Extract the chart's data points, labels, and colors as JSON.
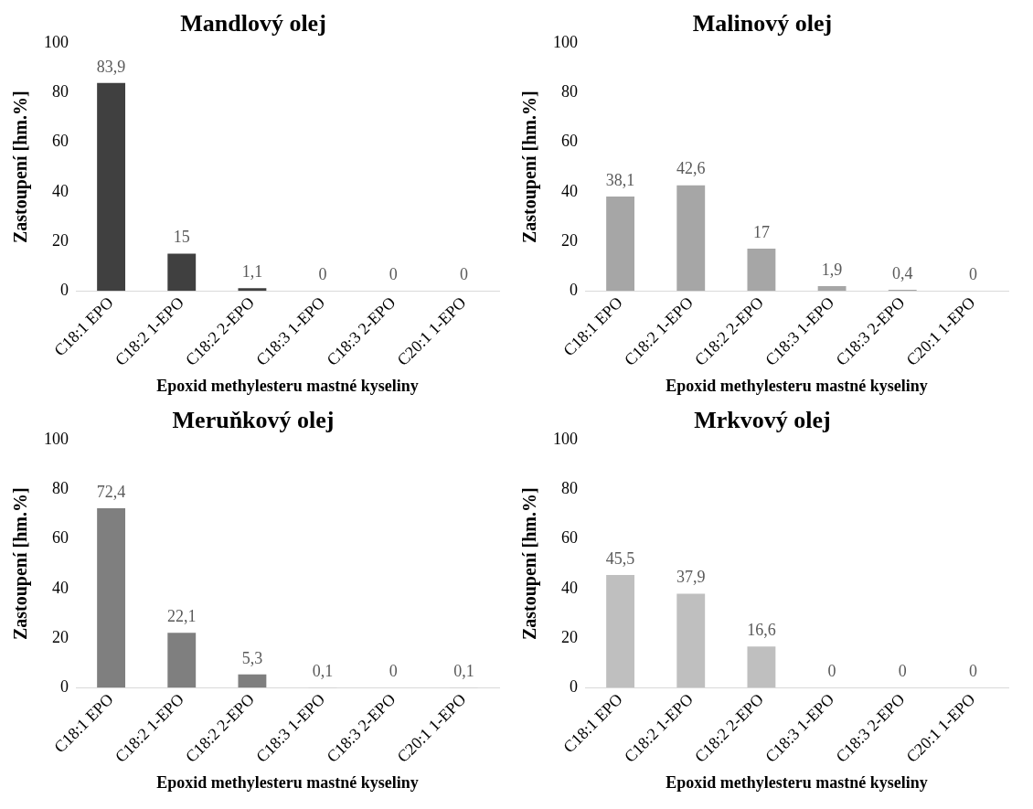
{
  "chart_data": [
    {
      "type": "bar",
      "title": "Mandlový olej",
      "xlabel": "Epoxid methylesteru mastné kyseliny",
      "ylabel": "Zastoupení [hm.%]",
      "categories": [
        "C18:1 EPO",
        "C18:2 1-EPO",
        "C18:2 2-EPO",
        "C18:3 1-EPO",
        "C18:3 2-EPO",
        "C20:1 1-EPO"
      ],
      "values": [
        83.9,
        15,
        1.1,
        0,
        0,
        0
      ],
      "value_labels": [
        "83,9",
        "15",
        "1,1",
        "0",
        "0",
        "0"
      ],
      "color": "#404040",
      "ylim": [
        0,
        100
      ],
      "yticks": [
        0,
        20,
        40,
        60,
        80,
        100
      ]
    },
    {
      "type": "bar",
      "title": "Malinový olej",
      "xlabel": "Epoxid methylesteru mastné kyseliny",
      "ylabel": "Zastoupení [hm.%]",
      "categories": [
        "C18:1 EPO",
        "C18:2 1-EPO",
        "C18:2 2-EPO",
        "C18:3 1-EPO",
        "C18:3 2-EPO",
        "C20:1 1-EPO"
      ],
      "values": [
        38.1,
        42.6,
        17,
        1.9,
        0.4,
        0
      ],
      "value_labels": [
        "38,1",
        "42,6",
        "17",
        "1,9",
        "0,4",
        "0"
      ],
      "color": "#a6a6a6",
      "ylim": [
        0,
        100
      ],
      "yticks": [
        0,
        20,
        40,
        60,
        80,
        100
      ]
    },
    {
      "type": "bar",
      "title": "Meruňkový olej",
      "xlabel": "Epoxid methylesteru mastné kyseliny",
      "ylabel": "Zastoupení [hm.%]",
      "categories": [
        "C18:1 EPO",
        "C18:2 1-EPO",
        "C18:2 2-EPO",
        "C18:3 1-EPO",
        "C18:3 2-EPO",
        "C20:1 1-EPO"
      ],
      "values": [
        72.4,
        22.1,
        5.3,
        0.1,
        0,
        0.1
      ],
      "value_labels": [
        "72,4",
        "22,1",
        "5,3",
        "0,1",
        "0",
        "0,1"
      ],
      "color": "#7f7f7f",
      "ylim": [
        0,
        100
      ],
      "yticks": [
        0,
        20,
        40,
        60,
        80,
        100
      ]
    },
    {
      "type": "bar",
      "title": "Mrkvový olej",
      "xlabel": "Epoxid methylesteru mastné kyseliny",
      "ylabel": "Zastoupení [hm.%]",
      "categories": [
        "C18:1 EPO",
        "C18:2 1-EPO",
        "C18:2 2-EPO",
        "C18:3 1-EPO",
        "C18:3 2-EPO",
        "C20:1 1-EPO"
      ],
      "values": [
        45.5,
        37.9,
        16.6,
        0,
        0,
        0
      ],
      "value_labels": [
        "45,5",
        "37,9",
        "16,6",
        "0",
        "0",
        "0"
      ],
      "color": "#bfbfbf",
      "ylim": [
        0,
        100
      ],
      "yticks": [
        0,
        20,
        40,
        60,
        80,
        100
      ]
    }
  ]
}
